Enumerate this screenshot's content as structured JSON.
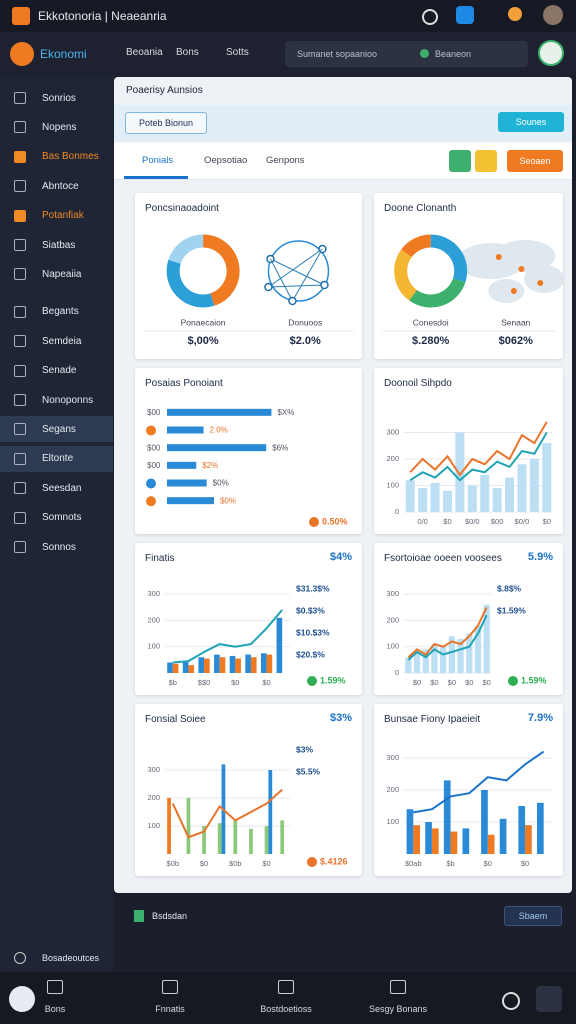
{
  "app": {
    "title": "Ekkotonoria | Neaeanria",
    "logo": "Ekonomi",
    "nav": [
      "Beoania",
      "Bons",
      "Sotts"
    ],
    "search": "Sumanet sopaanioo",
    "search_button": "Beaneon"
  },
  "sidebar": {
    "items": [
      {
        "label": "Sonrios"
      },
      {
        "label": "Nopens"
      },
      {
        "label": "Bas Bonmes",
        "color": "#f08a24"
      },
      {
        "label": "Abntoce"
      },
      {
        "label": "Potanfiak",
        "color": "#f08a24"
      },
      {
        "label": "Siatbas"
      },
      {
        "label": "Napeaiia"
      },
      {
        "label": "Begants"
      },
      {
        "label": "Semdeia"
      },
      {
        "label": "Senade"
      },
      {
        "label": "Nonoponns"
      },
      {
        "label": "Segans",
        "selected": true
      },
      {
        "label": "Eltonte",
        "selected": true
      },
      {
        "label": "Seesdan"
      },
      {
        "label": "Somnots"
      },
      {
        "label": "Sonnos"
      }
    ],
    "footer": "Bosadeoutces"
  },
  "main": {
    "heading": "Poaerisy Aunsios",
    "filter": "Poteb Bionun",
    "action": "Sounes",
    "tabs": [
      "Ponials",
      "Oepsotiao",
      "Genpons"
    ],
    "button": "Seoaen"
  },
  "cards": [
    {
      "title": "Poncsinaoadoint",
      "type": "donut",
      "decor": "network",
      "values": [
        45,
        35,
        20
      ],
      "colors": [
        "#f07a22",
        "#2c9fd9",
        "#9fd3f0"
      ],
      "stats": [
        {
          "label": "Ponaecaion",
          "value": "$,00%"
        },
        {
          "label": "Donuoos",
          "value": "$2.0%"
        }
      ]
    },
    {
      "title": "Doone Clonanth",
      "type": "donut",
      "decor": "map",
      "values": [
        30,
        30,
        25,
        15
      ],
      "colors": [
        "#2c9fd9",
        "#3cb06c",
        "#f2b632",
        "#f07a22"
      ],
      "stats": [
        {
          "label": "Conesdoi",
          "value": "$.280%"
        },
        {
          "label": "Senaan",
          "value": "$062%"
        }
      ]
    },
    {
      "title": "Posaias Ponoiant",
      "type": "hbar",
      "categories": [
        "$00",
        null,
        "$00",
        "$00",
        null,
        null
      ],
      "values": [
        100,
        35,
        95,
        28,
        38,
        45
      ],
      "xlim": [
        0,
        100
      ],
      "color": "#2a8ad6",
      "notes": [
        "$X%",
        "2.0%",
        "$6%",
        "$2%",
        "$0%",
        "$0%"
      ],
      "badge": "0.50%",
      "badge_color": "#e8742a"
    },
    {
      "title": "Doonoil Sihpdo",
      "type": "combo",
      "ylim": [
        0,
        400
      ],
      "yticks": [
        0,
        100,
        200,
        300
      ],
      "categories": [
        null,
        "0/0",
        null,
        "$0",
        null,
        "$0/0",
        null,
        "$00",
        null,
        "$0/0",
        null,
        "$0"
      ],
      "series": [
        {
          "type": "bar",
          "color": "#bcdff3",
          "values": [
            120,
            90,
            110,
            80,
            300,
            100,
            140,
            90,
            130,
            180,
            200,
            260
          ]
        },
        {
          "type": "line",
          "color": "#e8742a",
          "values": [
            150,
            200,
            160,
            210,
            140,
            200,
            180,
            230,
            200,
            290,
            260,
            340
          ]
        },
        {
          "type": "line",
          "color": "#1fa3b5",
          "values": [
            120,
            150,
            130,
            170,
            120,
            160,
            150,
            190,
            170,
            230,
            220,
            300
          ]
        }
      ]
    },
    {
      "title": "Finatis",
      "headline": "$4%",
      "type": "combo",
      "ylim": [
        0,
        350
      ],
      "yticks": [
        100,
        200,
        300
      ],
      "categories": [
        "$b",
        null,
        "$$0",
        null,
        "$0",
        null,
        "$0",
        null
      ],
      "series": [
        {
          "type": "bar",
          "color": "#2a8ad6",
          "values": [
            40,
            45,
            60,
            70,
            65,
            70,
            75,
            210
          ]
        },
        {
          "type": "bar",
          "color": "#f07a22",
          "values": [
            35,
            30,
            55,
            60,
            55,
            60,
            70,
            null
          ]
        },
        {
          "type": "line",
          "color": "#1fa3b5",
          "values": [
            40,
            45,
            80,
            110,
            100,
            110,
            170,
            240
          ]
        }
      ],
      "notes": [
        "$31.3$%",
        "$0.$3%",
        "$10.$3%",
        "$20.$%"
      ],
      "badge": "1.59%",
      "badge_color": "#2fae55"
    },
    {
      "title": "Fsortoioae ooeen voosees",
      "headline": "5.9%",
      "type": "combo",
      "ylim": [
        0,
        350
      ],
      "yticks": [
        0,
        100,
        200,
        300
      ],
      "categories": [
        null,
        "$0",
        null,
        "$0",
        null,
        "$0",
        null,
        "$0",
        null,
        "$0"
      ],
      "series": [
        {
          "type": "bar",
          "color": "#bcdff3",
          "values": [
            60,
            80,
            90,
            110,
            100,
            140,
            130,
            150,
            180,
            260
          ]
        },
        {
          "type": "line",
          "color": "#e8742a",
          "values": [
            60,
            90,
            70,
            110,
            100,
            120,
            110,
            140,
            180,
            250
          ]
        },
        {
          "type": "line",
          "color": "#1fa3b5",
          "values": [
            50,
            80,
            60,
            90,
            70,
            80,
            90,
            100,
            150,
            220
          ]
        }
      ],
      "notes": [
        "$.8$%",
        "$1.59%"
      ],
      "badge": "1.59%",
      "badge_color": "#2fae55"
    },
    {
      "title": "Fonsial Soiee",
      "headline": "$3%",
      "type": "combo",
      "ylim": [
        0,
        400
      ],
      "yticks": [
        100,
        200,
        300
      ],
      "categories": [
        "$0b",
        null,
        "$0",
        null,
        "$0b",
        null,
        "$0",
        null
      ],
      "series": [
        {
          "type": "bar",
          "color": "#f07a22",
          "values": [
            200,
            null,
            null,
            null,
            null,
            null,
            null,
            null
          ]
        },
        {
          "type": "bar",
          "color": "#8cc97a",
          "values": [
            null,
            200,
            100,
            110,
            120,
            90,
            100,
            120
          ]
        },
        {
          "type": "bar",
          "color": "#2a8ad6",
          "values": [
            null,
            null,
            null,
            320,
            null,
            null,
            300,
            null
          ]
        },
        {
          "type": "line",
          "color": "#e8742a",
          "values": [
            180,
            60,
            80,
            170,
            120,
            150,
            180,
            230
          ]
        }
      ],
      "notes": [
        "$3%",
        "$5.5%"
      ],
      "badge": "$.4126",
      "badge_color": "#e8742a"
    },
    {
      "title": "Bunsae Fiony Ipaeieit",
      "headline": "7.9%",
      "type": "combo",
      "ylim": [
        0,
        350
      ],
      "yticks": [
        100,
        200,
        300
      ],
      "categories": [
        "$0ab",
        null,
        "$b",
        null,
        "$0",
        null,
        "$0",
        null
      ],
      "series": [
        {
          "type": "bar",
          "color": "#2a8ad6",
          "values": [
            140,
            100,
            230,
            80,
            200,
            110,
            150,
            160
          ]
        },
        {
          "type": "bar",
          "color": "#f07a22",
          "values": [
            90,
            80,
            70,
            null,
            60,
            null,
            90,
            null
          ]
        },
        {
          "type": "line",
          "color": "#1a73c8",
          "values": [
            130,
            140,
            180,
            190,
            240,
            230,
            280,
            320
          ]
        }
      ]
    }
  ],
  "footer": {
    "label": "Bsdsdan",
    "button": "Sbaem"
  },
  "bottom_nav": [
    "Bons",
    "Fnnatis",
    "Bostdoetioss",
    "Sesgy Bonans"
  ]
}
